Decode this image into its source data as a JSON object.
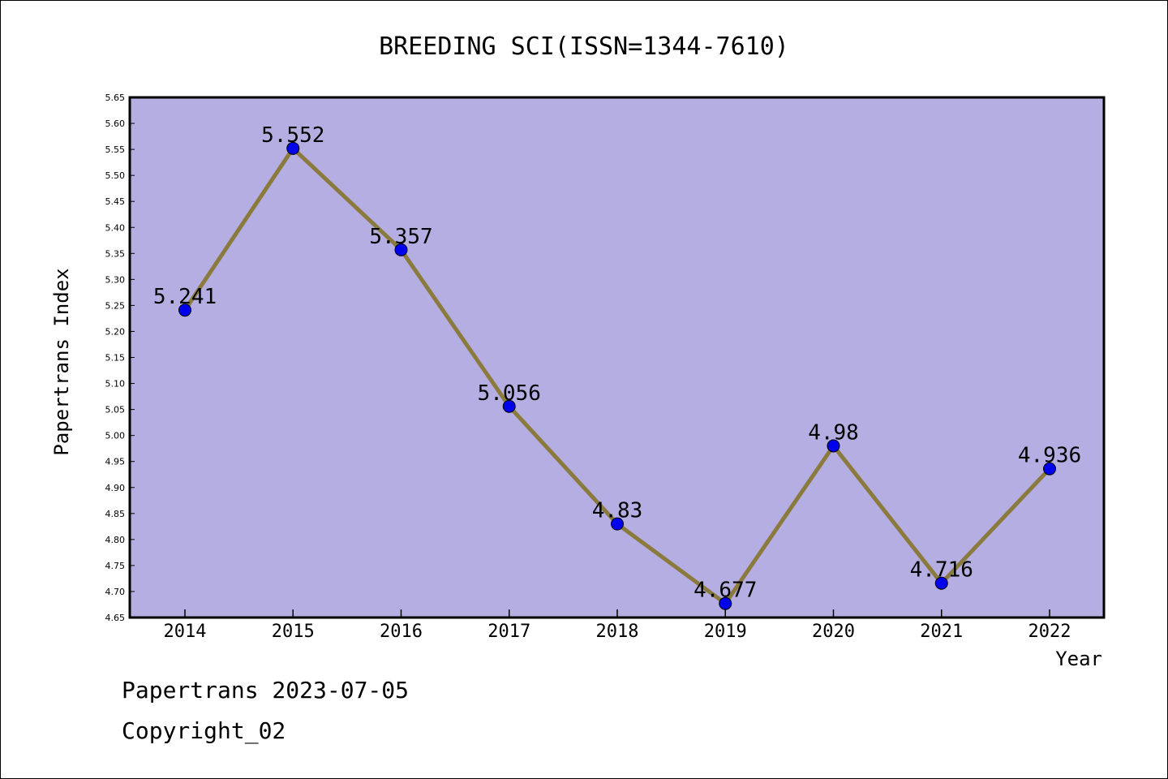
{
  "chart_data": {
    "type": "line",
    "title": "BREEDING SCI(ISSN=1344-7610)",
    "xlabel": "Year",
    "ylabel": "Papertrans Index",
    "categories": [
      "2014",
      "2015",
      "2016",
      "2017",
      "2018",
      "2019",
      "2020",
      "2021",
      "2022"
    ],
    "values": [
      5.241,
      5.552,
      5.357,
      5.056,
      4.83,
      4.677,
      4.98,
      4.716,
      4.936
    ],
    "data_labels": [
      "5.241",
      "5.552",
      "5.357",
      "5.056",
      "4.83",
      "4.677",
      "4.98",
      "4.716",
      "4.936"
    ],
    "ylim": [
      4.65,
      5.65
    ],
    "yticks": [
      "4.65",
      "4.70",
      "4.75",
      "4.80",
      "4.85",
      "4.90",
      "4.95",
      "5.00",
      "5.05",
      "5.10",
      "5.15",
      "5.20",
      "5.25",
      "5.30",
      "5.35",
      "5.40",
      "5.45",
      "5.50",
      "5.55",
      "5.60",
      "5.65"
    ],
    "grid": false,
    "colors": {
      "plot_background": "#b5aee3",
      "line": "#8b7a3e",
      "marker": "#0000ee"
    }
  },
  "footer": {
    "line1": "Papertrans 2023-07-05",
    "line2": "Copyright_02"
  }
}
